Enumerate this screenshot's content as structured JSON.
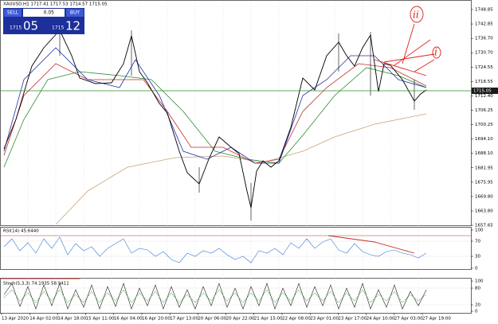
{
  "header": "XAUUSD,H1  1717.41 1717.53 1714.57 1715.05",
  "trade_panel": {
    "sell": "SELL",
    "lot": "0.05",
    "buy": "BUY",
    "bid_main": "1715",
    "bid_pips": "05",
    "ask_main": "1715",
    "ask_pips": "12"
  },
  "current_price": "1715.05",
  "price_axis": [
    "1748.85",
    "1742.85",
    "1736.70",
    "1730.70",
    "1724.55",
    "1718.55",
    "1712.40",
    "1706.25",
    "1700.25",
    "1694.10",
    "1688.10",
    "1681.95",
    "1675.95",
    "1669.80",
    "1663.80",
    "1657.65"
  ],
  "rsi": {
    "label": "RSI(14) 45.6440",
    "axis": [
      "100",
      "70",
      "30",
      "0"
    ]
  },
  "stoch": {
    "label": "Stoch(5,3,3) 74.1935 58.9411",
    "axis": [
      "100",
      "80",
      "20",
      "0"
    ]
  },
  "time_axis": [
    "13 Apr 2020",
    "14 Apr 02:00",
    "14 Apr 18:00",
    "15 Apr 11:00",
    "16 Apr 04:00",
    "16 Apr 20:00",
    "17 Apr 13:00",
    "20 Apr 06:00",
    "20 Apr 22:00",
    "21 Apr 15:00",
    "22 Apr 08:00",
    "23 Apr 01:00",
    "23 Apr 17:00",
    "24 Apr 10:00",
    "27 Apr 03:00",
    "27 Apr 19:00"
  ],
  "annotations": [
    "ii",
    "i"
  ]
}
